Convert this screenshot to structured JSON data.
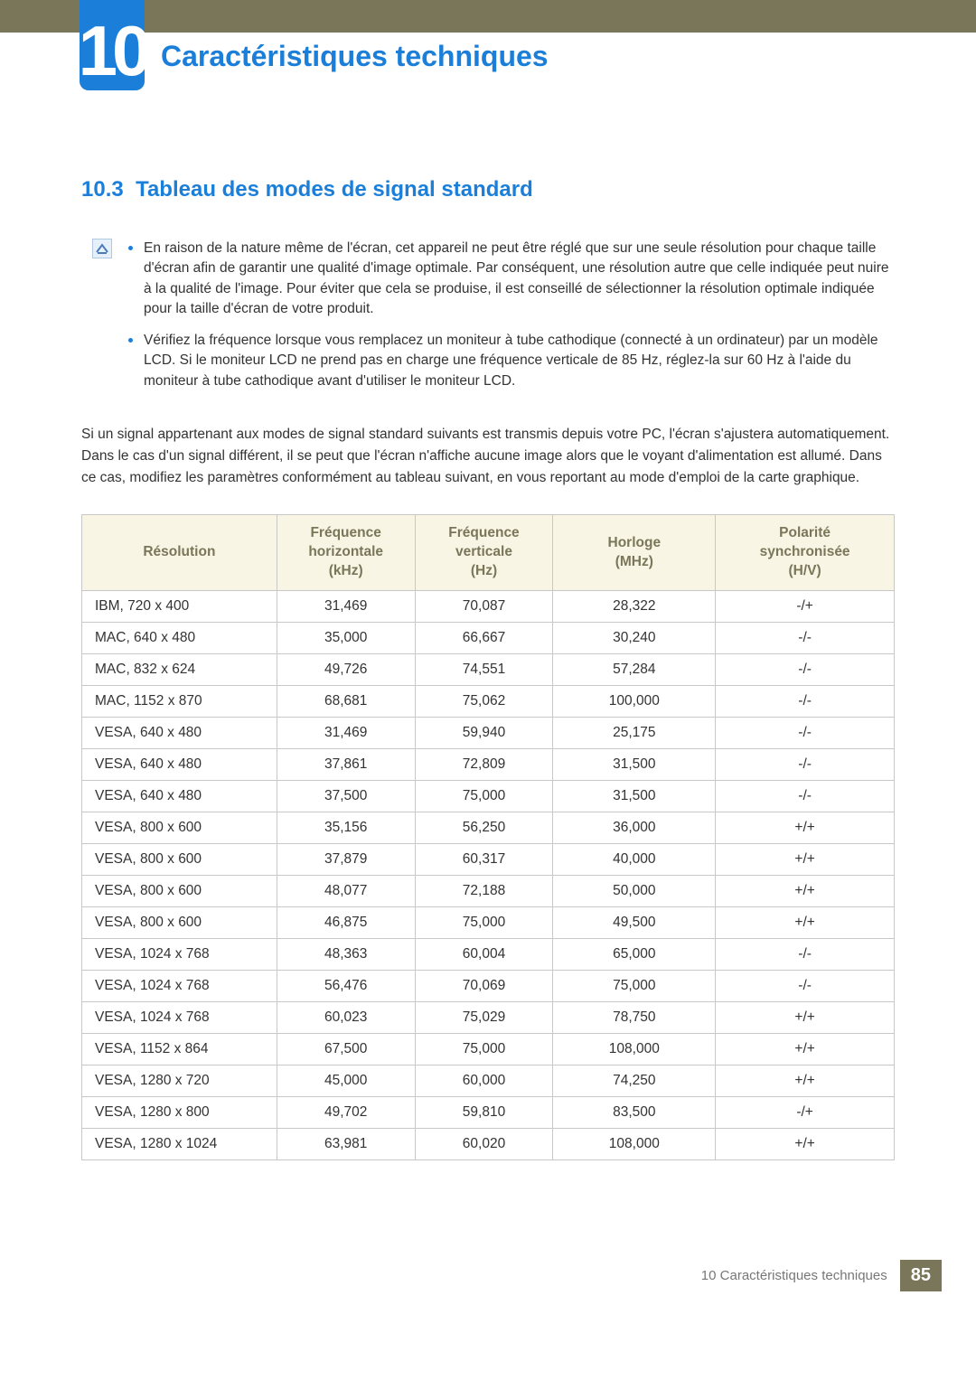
{
  "chapter": {
    "number": "10",
    "title": "Caractéristiques techniques"
  },
  "section": {
    "number": "10.3",
    "title": "Tableau des modes de signal standard"
  },
  "notes": [
    "En raison de la nature même de l'écran, cet appareil ne peut être réglé que sur une seule résolution pour chaque taille d'écran afin de garantir une qualité d'image optimale. Par conséquent, une résolution autre que celle indiquée peut nuire à la qualité de l'image. Pour éviter que cela se produise, il est conseillé de sélectionner la résolution optimale indiquée pour la taille d'écran de votre produit.",
    "Vérifiez la fréquence lorsque vous remplacez un moniteur à tube cathodique (connecté à un ordinateur) par un modèle LCD. Si le moniteur LCD ne prend pas en charge une fréquence verticale de 85 Hz, réglez-la sur 60 Hz à l'aide du moniteur à tube cathodique avant d'utiliser le moniteur LCD."
  ],
  "body": "Si un signal appartenant aux modes de signal standard suivants est transmis depuis votre PC, l'écran s'ajustera automatiquement. Dans le cas d'un signal différent, il se peut que l'écran n'affiche aucune image alors que le voyant d'alimentation est allumé. Dans ce cas, modifiez les paramètres conformément au tableau suivant, en vous reportant au mode d'emploi de la carte graphique.",
  "table": {
    "columns": [
      "Résolution",
      "Fréquence horizontale (kHz)",
      "Fréquence verticale (Hz)",
      "Horloge (MHz)",
      "Polarité synchronisée (H/V)"
    ],
    "col_widths_pct": [
      24,
      17,
      17,
      20,
      22
    ],
    "header_bg": "#f9f5e4",
    "header_color": "#797659",
    "border_color": "#c8c8c8",
    "rows": [
      [
        "IBM, 720 x 400",
        "31,469",
        "70,087",
        "28,322",
        "-/+"
      ],
      [
        "MAC, 640 x 480",
        "35,000",
        "66,667",
        "30,240",
        "-/-"
      ],
      [
        "MAC, 832 x 624",
        "49,726",
        "74,551",
        "57,284",
        "-/-"
      ],
      [
        "MAC, 1152 x 870",
        "68,681",
        "75,062",
        "100,000",
        "-/-"
      ],
      [
        "VESA, 640 x 480",
        "31,469",
        "59,940",
        "25,175",
        "-/-"
      ],
      [
        "VESA, 640 x 480",
        "37,861",
        "72,809",
        "31,500",
        "-/-"
      ],
      [
        "VESA, 640 x 480",
        "37,500",
        "75,000",
        "31,500",
        "-/-"
      ],
      [
        "VESA, 800 x 600",
        "35,156",
        "56,250",
        "36,000",
        "+/+"
      ],
      [
        "VESA, 800 x 600",
        "37,879",
        "60,317",
        "40,000",
        "+/+"
      ],
      [
        "VESA, 800 x 600",
        "48,077",
        "72,188",
        "50,000",
        "+/+"
      ],
      [
        "VESA, 800 x 600",
        "46,875",
        "75,000",
        "49,500",
        "+/+"
      ],
      [
        "VESA, 1024 x 768",
        "48,363",
        "60,004",
        "65,000",
        "-/-"
      ],
      [
        "VESA, 1024 x 768",
        "56,476",
        "70,069",
        "75,000",
        "-/-"
      ],
      [
        "VESA, 1024 x 768",
        "60,023",
        "75,029",
        "78,750",
        "+/+"
      ],
      [
        "VESA, 1152 x 864",
        "67,500",
        "75,000",
        "108,000",
        "+/+"
      ],
      [
        "VESA, 1280 x 720",
        "45,000",
        "60,000",
        "74,250",
        "+/+"
      ],
      [
        "VESA, 1280 x 800",
        "49,702",
        "59,810",
        "83,500",
        "-/+"
      ],
      [
        "VESA, 1280 x 1024",
        "63,981",
        "60,020",
        "108,000",
        "+/+"
      ]
    ]
  },
  "footer": {
    "label": "10 Caractéristiques techniques",
    "page": "85"
  }
}
